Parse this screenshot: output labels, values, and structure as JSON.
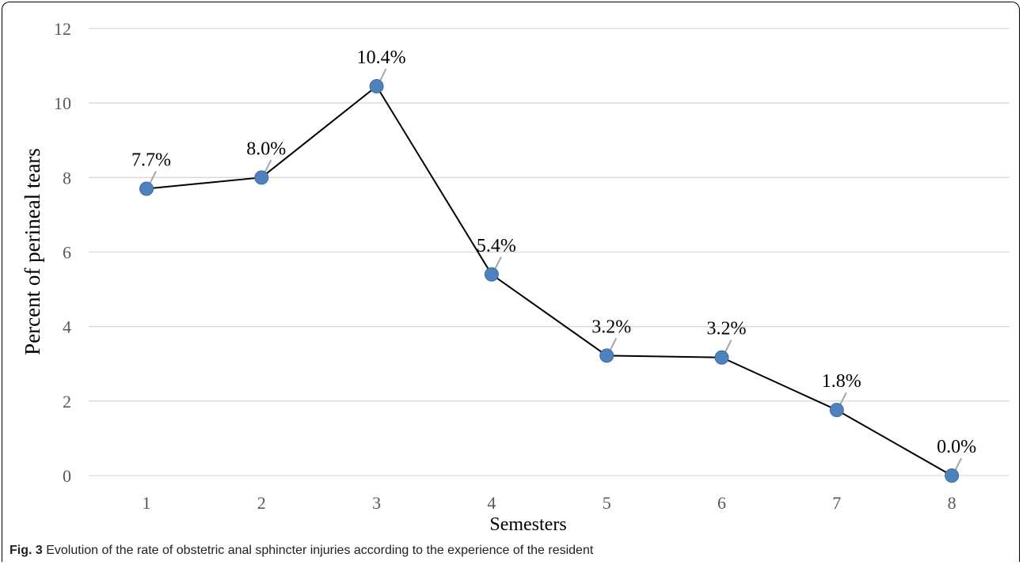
{
  "chart_data": {
    "type": "line",
    "x": [
      1,
      2,
      3,
      4,
      5,
      6,
      7,
      8
    ],
    "values": [
      7.7,
      8.0,
      10.45,
      5.4,
      3.22,
      3.17,
      1.76,
      0.0
    ],
    "data_labels": [
      "7.7%",
      "8.0%",
      "10.4%",
      "5.4%",
      "3.2%",
      "3.2%",
      "1.8%",
      "0.0%"
    ],
    "xlabel": "Semesters",
    "ylabel": "Percent of perineal tears",
    "ylim": [
      0,
      12
    ],
    "yticks": [
      0,
      2,
      4,
      6,
      8,
      10,
      12
    ],
    "xticks": [
      "1",
      "2",
      "3",
      "4",
      "5",
      "6",
      "7",
      "8"
    ],
    "grid": "horizontal",
    "marker_color": "#4f81bd",
    "line_color": "#000000",
    "leader_line_color": "#a6a6a6",
    "gridline_color": "#d9d9d9"
  },
  "caption": {
    "label": "Fig. 3",
    "text": " Evolution of the rate of obstetric anal sphincter injuries according to the experience of the resident"
  }
}
